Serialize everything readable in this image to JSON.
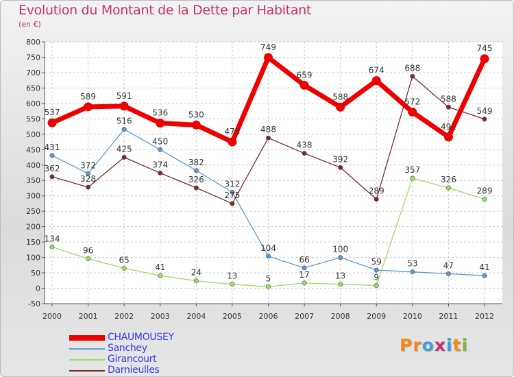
{
  "title": "Evolution du Montant de la Dette par Habitant",
  "subtitle": "(en €)",
  "logo": {
    "text": "Proxiti",
    "colors": [
      "#f28a1c",
      "#f28a1c",
      "#3aa0d8",
      "#c8326a",
      "#3aa0d8",
      "#f28a1c",
      "#7ab648"
    ]
  },
  "chart_data": {
    "type": "line",
    "title": "Evolution du Montant de la Dette par Habitant",
    "subtitle": "(en €)",
    "xlabel": "",
    "ylabel": "",
    "x": [
      "2000",
      "2001",
      "2002",
      "2003",
      "2004",
      "2005",
      "2006",
      "2007",
      "2008",
      "2009",
      "2010",
      "2011",
      "2012"
    ],
    "ylim": [
      -50,
      800
    ],
    "yticks": [
      -50,
      0,
      50,
      100,
      150,
      200,
      250,
      300,
      350,
      400,
      450,
      500,
      550,
      600,
      650,
      700,
      750,
      800
    ],
    "grid": true,
    "legend": "bottom-left",
    "series": [
      {
        "name": "CHAUMOUSEY",
        "color": "#ee0000",
        "values": [
          537,
          589,
          591,
          536,
          530,
          475,
          749,
          659,
          588,
          674,
          572,
          491,
          745
        ],
        "labels": [
          "537",
          "589",
          "591",
          "536",
          "530",
          "475",
          "749",
          "659",
          "588",
          "674",
          "572",
          "491",
          "745"
        ]
      },
      {
        "name": "Sanchey",
        "color": "#5b9bd5",
        "values": [
          431,
          372,
          516,
          450,
          382,
          312,
          104,
          66,
          100,
          59,
          53,
          47,
          41
        ],
        "labels": [
          "431",
          "372",
          "516",
          "450",
          "382",
          "312",
          "104",
          "66",
          "100",
          "59",
          "53",
          "47",
          "41"
        ]
      },
      {
        "name": "Girancourt",
        "color": "#99dd66",
        "values": [
          134,
          96,
          65,
          41,
          24,
          13,
          5,
          17,
          13,
          9,
          357,
          326,
          289
        ],
        "labels": [
          "134",
          "96",
          "65",
          "41",
          "24",
          "13",
          "5",
          "17",
          "13",
          "9",
          "357",
          "326",
          "289"
        ]
      },
      {
        "name": "Darnieulles",
        "color": "#7a2a2a",
        "values": [
          362,
          328,
          425,
          374,
          326,
          275,
          488,
          438,
          392,
          289,
          688,
          588,
          549
        ],
        "labels": [
          "362",
          "328",
          "425",
          "374",
          "326",
          "275",
          "488",
          "438",
          "392",
          "289",
          "688",
          "588",
          "549"
        ]
      }
    ]
  }
}
